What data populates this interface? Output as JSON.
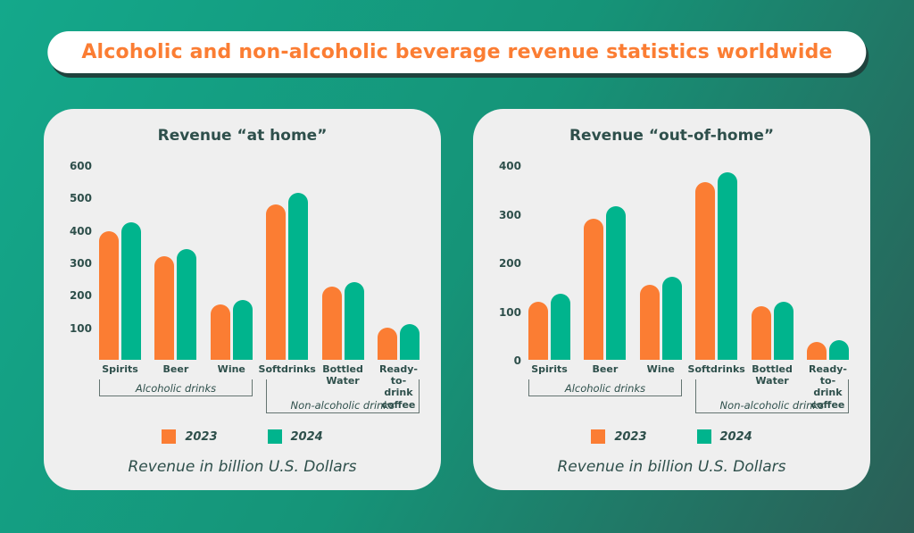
{
  "banner": {
    "title": "Alcoholic and non-alcoholic beverage revenue statistics worldwide"
  },
  "caption": "Revenue in billion U.S. Dollars",
  "colors": {
    "orange": "#FB7D33",
    "green": "#00B48D",
    "dark_text": "#2E4F4B",
    "card_bg": "#EFEFEF",
    "bracket_line": "#647471",
    "banner_text": "#FB7D33",
    "banner_shadow": "#1F423D",
    "bg_gradient_start": "#14A88B",
    "bg_gradient_mid": "#159478",
    "bg_gradient_end": "#2B5E56"
  },
  "legend": {
    "items": [
      {
        "label": "2023",
        "color_key": "orange"
      },
      {
        "label": "2024",
        "color_key": "green"
      }
    ]
  },
  "chart_data": [
    {
      "type": "bar",
      "title": "Revenue “at home”",
      "categories": [
        "Spirits",
        "Beer",
        "Wine",
        "Softdrinks",
        "Bottled Water",
        "Ready-to-drink coffee"
      ],
      "category_lines": [
        [
          "Spirits"
        ],
        [
          "Beer"
        ],
        [
          "Wine"
        ],
        [
          "Softdrinks"
        ],
        [
          "Bottled",
          "Water"
        ],
        [
          "Ready-to-",
          "drink",
          "coffee"
        ]
      ],
      "series": [
        {
          "name": "2023",
          "color_key": "orange",
          "values": [
            395,
            320,
            170,
            480,
            225,
            100
          ]
        },
        {
          "name": "2024",
          "color_key": "green",
          "values": [
            425,
            340,
            185,
            515,
            240,
            110
          ]
        }
      ],
      "ylim": [
        0,
        600
      ],
      "yticks": [
        600,
        500,
        400,
        300,
        200,
        100
      ],
      "category_groups": [
        {
          "label": "Alcoholic drinks",
          "from": 0,
          "to": 2
        },
        {
          "label": "Non-alcoholic drinks",
          "from": 3,
          "to": 5
        }
      ],
      "grid": false,
      "legend_position": "bottom",
      "units_note": "Revenue in billion U.S. Dollars"
    },
    {
      "type": "bar",
      "title": "Revenue “out-of-home”",
      "categories": [
        "Spirits",
        "Beer",
        "Wine",
        "Softdrinks",
        "Bottled Water",
        "Ready-to-drink coffee"
      ],
      "category_lines": [
        [
          "Spirits"
        ],
        [
          "Beer"
        ],
        [
          "Wine"
        ],
        [
          "Softdrinks"
        ],
        [
          "Bottled",
          "Water"
        ],
        [
          "Ready-to-",
          "drink",
          "coffee"
        ]
      ],
      "series": [
        {
          "name": "2023",
          "color_key": "orange",
          "values": [
            120,
            290,
            155,
            365,
            110,
            36
          ]
        },
        {
          "name": "2024",
          "color_key": "green",
          "values": [
            135,
            315,
            170,
            385,
            120,
            40
          ]
        }
      ],
      "ylim": [
        0,
        400
      ],
      "yticks": [
        400,
        300,
        200,
        100,
        0
      ],
      "category_groups": [
        {
          "label": "Alcoholic drinks",
          "from": 0,
          "to": 2
        },
        {
          "label": "Non-alcoholic drinks",
          "from": 3,
          "to": 5
        }
      ],
      "grid": false,
      "legend_position": "bottom",
      "units_note": "Revenue in billion U.S. Dollars"
    }
  ]
}
